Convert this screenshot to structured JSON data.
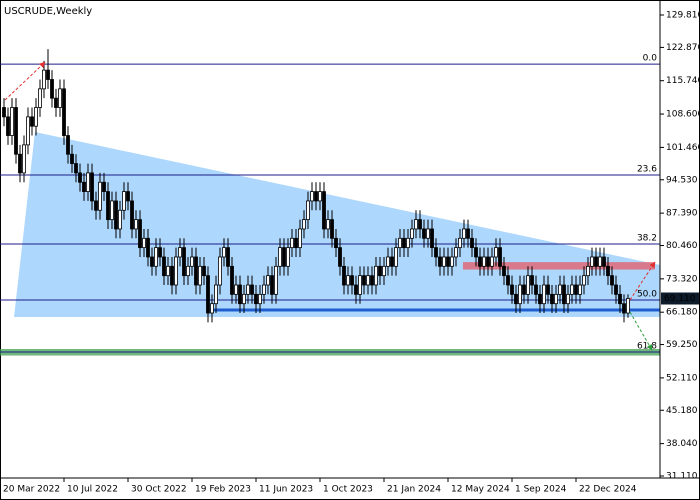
{
  "chart_data": {
    "type": "candlestick",
    "title": "USCRUDE,Weekly",
    "xlim": [
      -1,
      164
    ],
    "xticks": [
      {
        "value": -1,
        "label": "20 Mar 2022"
      },
      {
        "value": 15,
        "label": "10 Jul 2022"
      },
      {
        "value": 31,
        "label": "30 Oct 2022"
      },
      {
        "value": 47,
        "label": "19 Feb 2023"
      },
      {
        "value": 63,
        "label": "11 Jun 2023"
      },
      {
        "value": 79,
        "label": "1 Oct 2023"
      },
      {
        "value": 95,
        "label": "21 Jan 2024"
      },
      {
        "value": 111,
        "label": "12 May 2024"
      },
      {
        "value": 127,
        "label": "1 Sep 2024"
      },
      {
        "value": 143,
        "label": "22 Dec 2024"
      }
    ],
    "ylim": [
      30.68,
      133.02
    ],
    "yticks": [
      {
        "value": 129.81,
        "label": "129.810"
      },
      {
        "value": 122.87,
        "label": "122.870"
      },
      {
        "value": 115.74,
        "label": "115.740"
      },
      {
        "value": 108.6,
        "label": "108.600"
      },
      {
        "value": 101.46,
        "label": "101.460"
      },
      {
        "value": 94.53,
        "label": "94.530"
      },
      {
        "value": 87.39,
        "label": "87.390"
      },
      {
        "value": 80.46,
        "label": "80.460"
      },
      {
        "value": 73.32,
        "label": "73.320"
      },
      {
        "value": 66.18,
        "label": "66.180"
      },
      {
        "value": 59.25,
        "label": "59.250"
      },
      {
        "value": 52.11,
        "label": "52.110"
      },
      {
        "value": 45.18,
        "label": "45.180"
      },
      {
        "value": 38.04,
        "label": "38.040"
      },
      {
        "value": 31.11,
        "label": "31.110"
      }
    ],
    "up_color": "#ffffff",
    "down_color": "#000000",
    "open": [
      110,
      108,
      104,
      110,
      100,
      96,
      102,
      108,
      106,
      110,
      114,
      118,
      116,
      112,
      110,
      114,
      104,
      100,
      98,
      96,
      94,
      92,
      96,
      90,
      88,
      94,
      92,
      86,
      90,
      84,
      88,
      92,
      90,
      84,
      86,
      80,
      82,
      78,
      76,
      80,
      78,
      74,
      76,
      72,
      78,
      80,
      74,
      76,
      78,
      72,
      76,
      74,
      66,
      68,
      72,
      78,
      80,
      76,
      70,
      72,
      68,
      70,
      72,
      70,
      68,
      70,
      72,
      74,
      70,
      76,
      80,
      76,
      80,
      82,
      80,
      84,
      86,
      90,
      92,
      90,
      92,
      84,
      86,
      82,
      80,
      76,
      72,
      74,
      72,
      70,
      74,
      72,
      74,
      72,
      76,
      74,
      76,
      78,
      76,
      80,
      82,
      80,
      82,
      84,
      86,
      84,
      82,
      84,
      80,
      78,
      76,
      78,
      76,
      78,
      80,
      82,
      84,
      82,
      80,
      78,
      76,
      78,
      76,
      78,
      80,
      76,
      74,
      72,
      70,
      68,
      72,
      70,
      74,
      72,
      70,
      68,
      72,
      70,
      68,
      70,
      72,
      68,
      70,
      72,
      70,
      72,
      74,
      76,
      78,
      76,
      78,
      76,
      74,
      72,
      70,
      68,
      66
    ],
    "high": [
      112,
      110,
      112,
      112,
      102,
      104,
      110,
      110,
      112,
      116,
      120,
      122.5,
      118,
      114,
      116,
      116,
      106,
      102,
      100,
      98,
      96,
      98,
      98,
      92,
      96,
      96,
      94,
      92,
      92,
      90,
      94,
      94,
      92,
      88,
      88,
      84,
      84,
      80,
      82,
      82,
      80,
      78,
      78,
      80,
      82,
      82,
      78,
      80,
      80,
      78,
      78,
      76,
      70,
      74,
      80,
      82,
      82,
      78,
      74,
      74,
      72,
      74,
      74,
      72,
      72,
      74,
      76,
      76,
      78,
      82,
      82,
      82,
      84,
      84,
      86,
      88,
      92,
      94,
      94,
      94,
      94,
      88,
      88,
      84,
      82,
      78,
      76,
      76,
      74,
      76,
      76,
      76,
      76,
      78,
      78,
      78,
      80,
      80,
      82,
      84,
      84,
      84,
      86,
      88,
      88,
      86,
      86,
      86,
      82,
      80,
      80,
      80,
      80,
      82,
      84,
      86,
      86,
      84,
      82,
      80,
      80,
      80,
      80,
      82,
      82,
      78,
      76,
      74,
      72,
      74,
      74,
      76,
      76,
      74,
      72,
      74,
      74,
      72,
      72,
      74,
      74,
      72,
      74,
      74,
      74,
      76,
      78,
      80,
      80,
      80,
      80,
      78,
      76,
      74,
      72,
      70,
      70
    ],
    "low": [
      106,
      102,
      102,
      98,
      94,
      94,
      100,
      104,
      104,
      108,
      112,
      114,
      110,
      108,
      108,
      102,
      98,
      96,
      94,
      92,
      90,
      90,
      88,
      86,
      86,
      90,
      84,
      84,
      82,
      82,
      86,
      88,
      82,
      82,
      78,
      78,
      76,
      74,
      74,
      76,
      72,
      72,
      70,
      70,
      76,
      72,
      72,
      74,
      70,
      70,
      72,
      64,
      64,
      66,
      70,
      76,
      74,
      68,
      68,
      66,
      66,
      68,
      68,
      66,
      66,
      68,
      70,
      68,
      68,
      74,
      74,
      74,
      78,
      78,
      78,
      82,
      84,
      88,
      88,
      88,
      82,
      82,
      80,
      78,
      74,
      70,
      70,
      70,
      68,
      68,
      70,
      70,
      70,
      70,
      72,
      72,
      74,
      74,
      74,
      78,
      78,
      78,
      80,
      82,
      82,
      80,
      80,
      78,
      76,
      74,
      74,
      74,
      74,
      76,
      78,
      80,
      80,
      78,
      76,
      74,
      74,
      74,
      74,
      76,
      74,
      72,
      70,
      68,
      66,
      66,
      68,
      68,
      70,
      68,
      66,
      66,
      68,
      66,
      66,
      68,
      66,
      66,
      68,
      68,
      68,
      70,
      72,
      74,
      74,
      74,
      74,
      72,
      70,
      68,
      66,
      64,
      65
    ],
    "close": [
      108,
      104,
      110,
      100,
      96,
      102,
      108,
      106,
      110,
      114,
      118,
      116,
      112,
      110,
      114,
      104,
      100,
      98,
      96,
      94,
      92,
      96,
      90,
      88,
      94,
      92,
      86,
      90,
      84,
      88,
      92,
      90,
      84,
      86,
      80,
      82,
      78,
      76,
      80,
      78,
      74,
      76,
      72,
      78,
      80,
      74,
      76,
      78,
      72,
      76,
      74,
      66,
      68,
      72,
      78,
      80,
      76,
      70,
      72,
      68,
      70,
      72,
      70,
      68,
      70,
      72,
      74,
      70,
      76,
      80,
      76,
      80,
      82,
      80,
      84,
      86,
      90,
      92,
      90,
      92,
      84,
      86,
      82,
      80,
      76,
      72,
      74,
      72,
      70,
      74,
      72,
      74,
      72,
      76,
      74,
      76,
      78,
      76,
      80,
      82,
      80,
      82,
      84,
      86,
      84,
      82,
      84,
      80,
      78,
      76,
      78,
      76,
      78,
      80,
      82,
      84,
      82,
      80,
      78,
      76,
      78,
      76,
      78,
      80,
      76,
      74,
      72,
      70,
      68,
      72,
      70,
      74,
      72,
      70,
      68,
      72,
      70,
      68,
      70,
      72,
      68,
      70,
      72,
      70,
      72,
      74,
      76,
      78,
      76,
      78,
      76,
      74,
      72,
      70,
      68,
      66,
      69.11
    ],
    "last_price": {
      "value": 69.11,
      "label": "69.110"
    },
    "fib_levels": [
      {
        "label": "0.0",
        "price": 119.3,
        "color": "#1c1c8a"
      },
      {
        "label": "23.6",
        "price": 95.55,
        "color": "#1c1c8a"
      },
      {
        "label": "38.2",
        "price": 80.77,
        "color": "#1c1c8a"
      },
      {
        "label": "50.0",
        "price": 68.78,
        "color": "#1c1c8a"
      },
      {
        "label": "61.8",
        "price": 57.65,
        "color": "#1c1c8a"
      }
    ],
    "triangle": {
      "x": [
        7.75,
        164,
        164,
        2.5
      ],
      "y": [
        104.75,
        76.28,
        65.14,
        65.14
      ],
      "color": "#9fd0fb"
    },
    "support_line": {
      "x": [
        51.5,
        164
      ],
      "y": 66.64,
      "color": "#1f5fd0"
    },
    "resistance_zone": {
      "x": [
        114.75,
        162.75
      ],
      "y": [
        75.3,
        76.9
      ],
      "color": "#e06a78"
    },
    "green_zone": {
      "y": [
        56.9,
        58.3
      ],
      "color": "#3f9f4f"
    },
    "arrows": [
      {
        "x": [
          0.25,
          10.25
        ],
        "y": [
          111.6,
          119.7
        ],
        "color": "#e03030"
      },
      {
        "x": [
          156.5,
          162.75
        ],
        "y": [
          68.8,
          76.9
        ],
        "color": "#e03030"
      },
      {
        "x": [
          156.5,
          162
        ],
        "y": [
          66.2,
          58.07
        ],
        "color": "#2e9e3e"
      }
    ]
  }
}
